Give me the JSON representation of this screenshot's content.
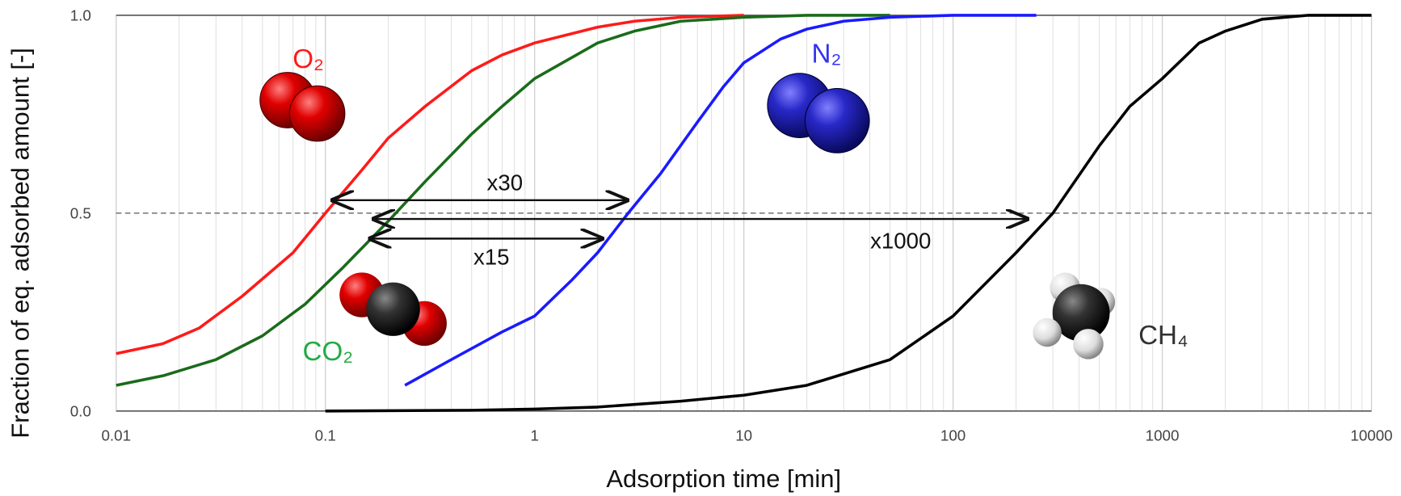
{
  "chart_data": {
    "type": "line",
    "x_label": "Adsorption time [min]",
    "y_label": "Fraction of eq. adsorbed amount [-]",
    "log_x": true,
    "xlim": [
      0.01,
      10000
    ],
    "xticks": [
      0.01,
      0.1,
      1,
      10,
      100,
      1000,
      10000
    ],
    "ylim": [
      0,
      1
    ],
    "yticks": [
      {
        "value": 0,
        "label": "0.0"
      },
      {
        "value": 0.5,
        "label": "0.5"
      },
      {
        "value": 1,
        "label": "1.0"
      }
    ],
    "grid": true,
    "series": [
      {
        "name": "O₂",
        "color": "#ff1a1a",
        "x": [
          0.01,
          0.0167,
          0.025,
          0.04,
          0.07,
          0.1,
          0.15,
          0.2,
          0.3,
          0.5,
          0.7,
          1,
          2,
          3,
          5,
          10
        ],
        "values": [
          0.145,
          0.17,
          0.21,
          0.29,
          0.4,
          0.5,
          0.61,
          0.69,
          0.77,
          0.86,
          0.9,
          0.93,
          0.97,
          0.985,
          0.995,
          1.0
        ]
      },
      {
        "name": "CO₂",
        "color": "#1a6b1a",
        "x": [
          0.01,
          0.017,
          0.03,
          0.05,
          0.08,
          0.12,
          0.2,
          0.3,
          0.5,
          0.7,
          1,
          2,
          3,
          5,
          10,
          20,
          50
        ],
        "values": [
          0.065,
          0.09,
          0.13,
          0.19,
          0.27,
          0.36,
          0.48,
          0.58,
          0.7,
          0.77,
          0.84,
          0.93,
          0.96,
          0.985,
          0.995,
          1.0,
          1.0
        ]
      },
      {
        "name": "N₂",
        "color": "#1a1aff",
        "x": [
          0.24,
          0.4,
          0.7,
          1,
          1.5,
          2,
          2.8,
          4,
          6,
          8,
          10,
          15,
          20,
          30,
          50,
          100,
          250
        ],
        "values": [
          0.065,
          0.13,
          0.2,
          0.24,
          0.33,
          0.4,
          0.5,
          0.6,
          0.73,
          0.82,
          0.88,
          0.94,
          0.965,
          0.985,
          0.995,
          1.0,
          1.0
        ]
      },
      {
        "name": "CH₄",
        "color": "#000000",
        "x": [
          0.1,
          0.5,
          1,
          2,
          5,
          10,
          20,
          50,
          100,
          200,
          300,
          500,
          700,
          1000,
          1500,
          2000,
          3000,
          5000,
          10000
        ],
        "values": [
          0.0,
          0.002,
          0.005,
          0.01,
          0.025,
          0.04,
          0.065,
          0.13,
          0.24,
          0.4,
          0.5,
          0.67,
          0.77,
          0.84,
          0.93,
          0.96,
          0.99,
          1.0,
          1.0
        ]
      }
    ],
    "annotations": [
      "x30",
      "x15",
      "x1000"
    ]
  }
}
